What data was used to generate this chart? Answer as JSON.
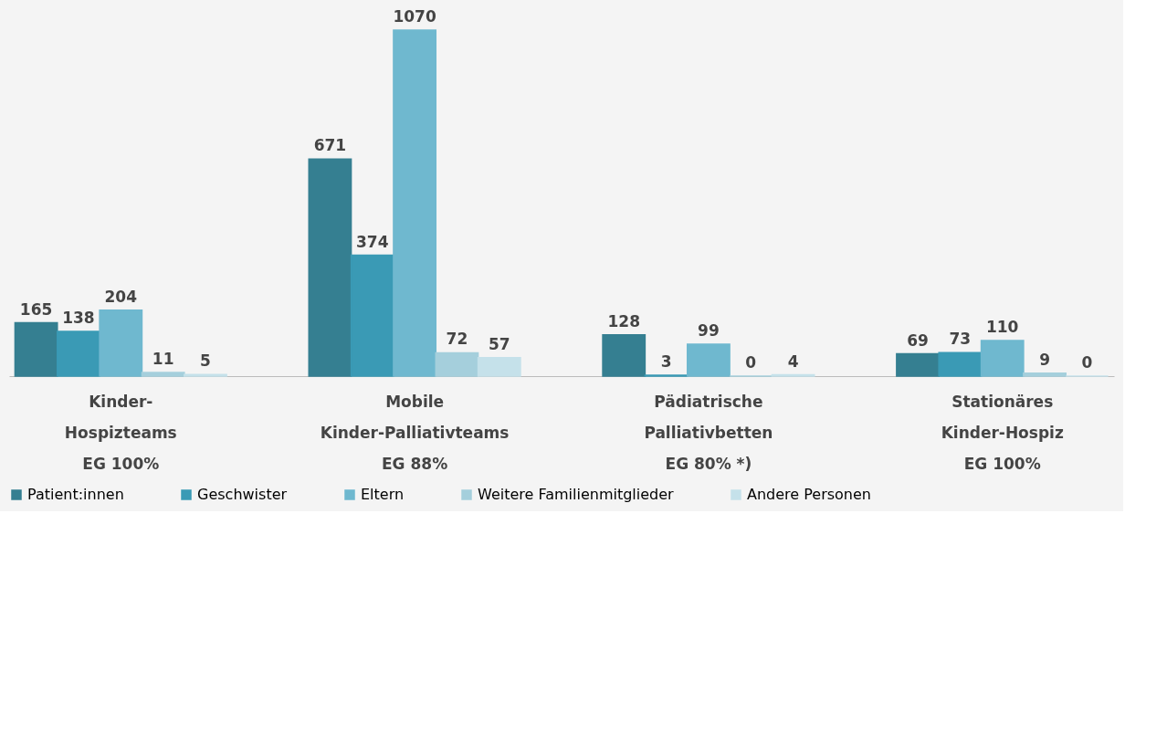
{
  "chart_data": {
    "type": "bar",
    "categories": [
      "Kinder-\nHospizteams\nEG 100%",
      "Mobile\nKinder-Palliativteams\nEG 88%",
      "Pädiatrische\nPalliativbetten\nEG  80% *)",
      "Stationäres\nKinder-Hospiz\nEG 100%"
    ],
    "series": [
      {
        "name": "Patient:innen",
        "color": "#357f91",
        "values": [
          165,
          671,
          128,
          69
        ]
      },
      {
        "name": "Geschwister",
        "color": "#3a9ab5",
        "values": [
          138,
          374,
          3,
          73
        ]
      },
      {
        "name": "Eltern",
        "color": "#6fb8cf",
        "values": [
          204,
          1070,
          99,
          110
        ]
      },
      {
        "name": "Weitere Familienmitglieder",
        "color": "#a5cfdc",
        "values": [
          11,
          72,
          0,
          9
        ]
      },
      {
        "name": "Andere Personen",
        "color": "#c5e1ea",
        "values": [
          5,
          57,
          4,
          0
        ]
      }
    ],
    "data_labels": true,
    "legend": "bottom",
    "grid": false
  }
}
